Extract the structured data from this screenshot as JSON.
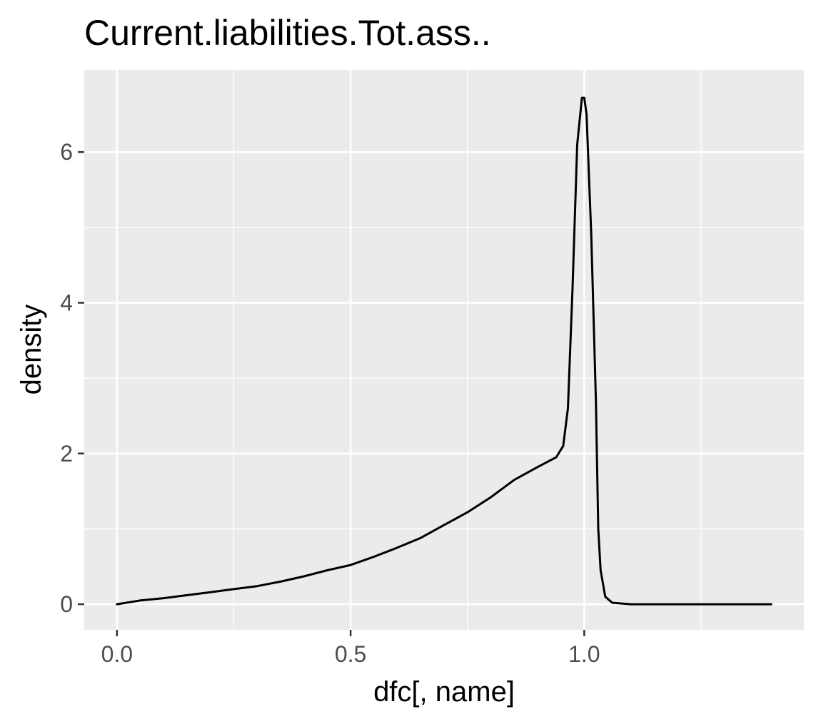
{
  "chart_data": {
    "type": "line",
    "title": "Current.liabilities.Tot.ass..",
    "xlabel": "dfc[, name]",
    "ylabel": "density",
    "xlim": [
      -0.07,
      1.47
    ],
    "ylim": [
      -0.34,
      7.09
    ],
    "x_ticks": [
      {
        "value": 0.0,
        "label": "0.0"
      },
      {
        "value": 0.5,
        "label": "0.5"
      },
      {
        "value": 1.0,
        "label": "1.0"
      }
    ],
    "y_ticks": [
      {
        "value": 0,
        "label": "0"
      },
      {
        "value": 2,
        "label": "2"
      },
      {
        "value": 4,
        "label": "4"
      },
      {
        "value": 6,
        "label": "6"
      }
    ],
    "x_minor_gridlines": [
      0.25,
      0.75,
      1.25
    ],
    "y_minor_gridlines": [
      1,
      3,
      5
    ],
    "grid": true,
    "colors": {
      "panel_background": "#ebebeb",
      "gridline": "#ffffff",
      "line": "#000000",
      "tick_label": "#4d4d4d",
      "tick_mark": "#333333"
    },
    "series": [
      {
        "x": [
          0.0,
          0.05,
          0.1,
          0.15,
          0.2,
          0.25,
          0.3,
          0.35,
          0.4,
          0.45,
          0.5,
          0.55,
          0.6,
          0.65,
          0.7,
          0.75,
          0.8,
          0.85,
          0.9,
          0.94,
          0.955,
          0.965,
          0.975,
          0.985,
          0.995,
          1.0,
          1.005,
          1.015,
          1.025,
          1.03,
          1.035,
          1.045,
          1.06,
          1.1,
          1.2,
          1.3,
          1.4
        ],
        "y": [
          0.0,
          0.05,
          0.08,
          0.12,
          0.16,
          0.2,
          0.24,
          0.3,
          0.37,
          0.45,
          0.52,
          0.63,
          0.75,
          0.88,
          1.05,
          1.22,
          1.42,
          1.65,
          1.82,
          1.95,
          2.1,
          2.6,
          4.2,
          6.1,
          6.72,
          6.72,
          6.5,
          4.9,
          2.7,
          1.0,
          0.45,
          0.1,
          0.02,
          0.0,
          0.0,
          0.0,
          0.0
        ]
      }
    ]
  }
}
